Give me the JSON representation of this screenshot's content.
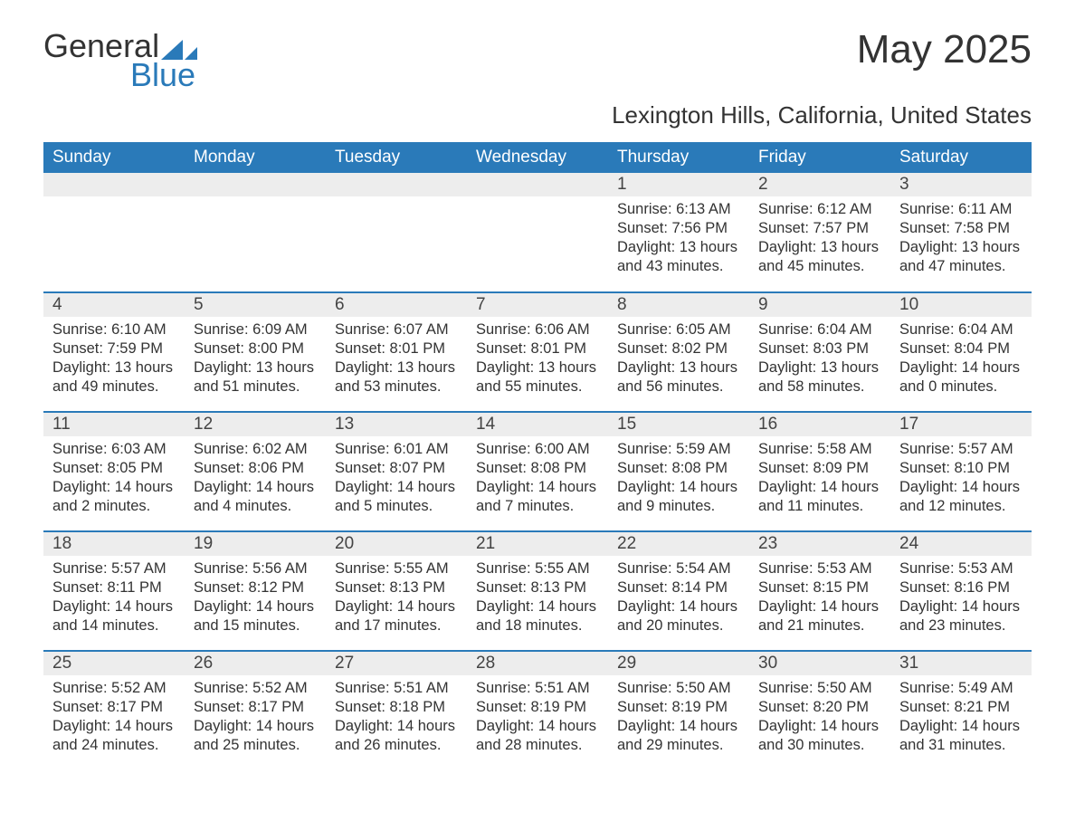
{
  "logo": {
    "word1": "General",
    "word2": "Blue",
    "brand_color": "#2a7ab9"
  },
  "title": "May 2025",
  "subtitle": "Lexington Hills, California, United States",
  "colors": {
    "header_bg": "#2a7ab9",
    "header_text": "#ffffff",
    "daynum_bg": "#ededed",
    "row_border": "#2a7ab9",
    "text": "#333333",
    "background": "#ffffff"
  },
  "day_names": [
    "Sunday",
    "Monday",
    "Tuesday",
    "Wednesday",
    "Thursday",
    "Friday",
    "Saturday"
  ],
  "weeks": [
    [
      null,
      null,
      null,
      null,
      {
        "d": "1",
        "sr": "6:13 AM",
        "ss": "7:56 PM",
        "dl": "13 hours and 43 minutes."
      },
      {
        "d": "2",
        "sr": "6:12 AM",
        "ss": "7:57 PM",
        "dl": "13 hours and 45 minutes."
      },
      {
        "d": "3",
        "sr": "6:11 AM",
        "ss": "7:58 PM",
        "dl": "13 hours and 47 minutes."
      }
    ],
    [
      {
        "d": "4",
        "sr": "6:10 AM",
        "ss": "7:59 PM",
        "dl": "13 hours and 49 minutes."
      },
      {
        "d": "5",
        "sr": "6:09 AM",
        "ss": "8:00 PM",
        "dl": "13 hours and 51 minutes."
      },
      {
        "d": "6",
        "sr": "6:07 AM",
        "ss": "8:01 PM",
        "dl": "13 hours and 53 minutes."
      },
      {
        "d": "7",
        "sr": "6:06 AM",
        "ss": "8:01 PM",
        "dl": "13 hours and 55 minutes."
      },
      {
        "d": "8",
        "sr": "6:05 AM",
        "ss": "8:02 PM",
        "dl": "13 hours and 56 minutes."
      },
      {
        "d": "9",
        "sr": "6:04 AM",
        "ss": "8:03 PM",
        "dl": "13 hours and 58 minutes."
      },
      {
        "d": "10",
        "sr": "6:04 AM",
        "ss": "8:04 PM",
        "dl": "14 hours and 0 minutes."
      }
    ],
    [
      {
        "d": "11",
        "sr": "6:03 AM",
        "ss": "8:05 PM",
        "dl": "14 hours and 2 minutes."
      },
      {
        "d": "12",
        "sr": "6:02 AM",
        "ss": "8:06 PM",
        "dl": "14 hours and 4 minutes."
      },
      {
        "d": "13",
        "sr": "6:01 AM",
        "ss": "8:07 PM",
        "dl": "14 hours and 5 minutes."
      },
      {
        "d": "14",
        "sr": "6:00 AM",
        "ss": "8:08 PM",
        "dl": "14 hours and 7 minutes."
      },
      {
        "d": "15",
        "sr": "5:59 AM",
        "ss": "8:08 PM",
        "dl": "14 hours and 9 minutes."
      },
      {
        "d": "16",
        "sr": "5:58 AM",
        "ss": "8:09 PM",
        "dl": "14 hours and 11 minutes."
      },
      {
        "d": "17",
        "sr": "5:57 AM",
        "ss": "8:10 PM",
        "dl": "14 hours and 12 minutes."
      }
    ],
    [
      {
        "d": "18",
        "sr": "5:57 AM",
        "ss": "8:11 PM",
        "dl": "14 hours and 14 minutes."
      },
      {
        "d": "19",
        "sr": "5:56 AM",
        "ss": "8:12 PM",
        "dl": "14 hours and 15 minutes."
      },
      {
        "d": "20",
        "sr": "5:55 AM",
        "ss": "8:13 PM",
        "dl": "14 hours and 17 minutes."
      },
      {
        "d": "21",
        "sr": "5:55 AM",
        "ss": "8:13 PM",
        "dl": "14 hours and 18 minutes."
      },
      {
        "d": "22",
        "sr": "5:54 AM",
        "ss": "8:14 PM",
        "dl": "14 hours and 20 minutes."
      },
      {
        "d": "23",
        "sr": "5:53 AM",
        "ss": "8:15 PM",
        "dl": "14 hours and 21 minutes."
      },
      {
        "d": "24",
        "sr": "5:53 AM",
        "ss": "8:16 PM",
        "dl": "14 hours and 23 minutes."
      }
    ],
    [
      {
        "d": "25",
        "sr": "5:52 AM",
        "ss": "8:17 PM",
        "dl": "14 hours and 24 minutes."
      },
      {
        "d": "26",
        "sr": "5:52 AM",
        "ss": "8:17 PM",
        "dl": "14 hours and 25 minutes."
      },
      {
        "d": "27",
        "sr": "5:51 AM",
        "ss": "8:18 PM",
        "dl": "14 hours and 26 minutes."
      },
      {
        "d": "28",
        "sr": "5:51 AM",
        "ss": "8:19 PM",
        "dl": "14 hours and 28 minutes."
      },
      {
        "d": "29",
        "sr": "5:50 AM",
        "ss": "8:19 PM",
        "dl": "14 hours and 29 minutes."
      },
      {
        "d": "30",
        "sr": "5:50 AM",
        "ss": "8:20 PM",
        "dl": "14 hours and 30 minutes."
      },
      {
        "d": "31",
        "sr": "5:49 AM",
        "ss": "8:21 PM",
        "dl": "14 hours and 31 minutes."
      }
    ]
  ],
  "labels": {
    "sunrise": "Sunrise:",
    "sunset": "Sunset:",
    "daylight": "Daylight:"
  }
}
